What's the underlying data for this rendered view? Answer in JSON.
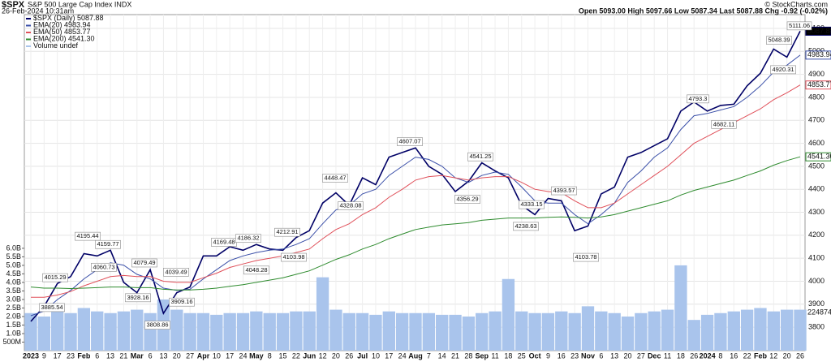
{
  "chart_data": {
    "type": "line",
    "title": "$SPX",
    "subtitle": "S&P 500 Large Cap Index INDX",
    "date": "26-Feb-2024 10:31am",
    "source": "© StockCharts.com",
    "quote": "Open 5093.00  High 5097.66  Low 5087.34  Last 5087.88  Chg -0.92 (-0.02%)",
    "categories": [
      "2023",
      "9",
      "17",
      "23",
      "Feb",
      "6",
      "13",
      "21",
      "Mar",
      "6",
      "13",
      "20",
      "27",
      "Apr",
      "10",
      "17",
      "24",
      "May",
      "8",
      "15",
      "22",
      "Jun",
      "12",
      "20",
      "26",
      "Jul",
      "10",
      "17",
      "24",
      "Aug",
      "7",
      "14",
      "21",
      "28",
      "Sep",
      "11",
      "18",
      "25",
      "Oct",
      "9",
      "16",
      "23",
      "Nov",
      "6",
      "13",
      "20",
      "27",
      "Dec",
      "11",
      "18",
      "26",
      "2024",
      "8",
      "16",
      "22",
      "Feb",
      "12",
      "20",
      "26"
    ],
    "series": [
      {
        "name": "$SPX (Daily)",
        "last_label": "5087.88",
        "color": "#000066",
        "values": [
          3825,
          3890,
          3990,
          4020,
          4120,
          4110,
          4135,
          3995,
          3950,
          4050,
          3860,
          3950,
          3975,
          4110,
          4110,
          4150,
          4135,
          4160,
          4140,
          4135,
          4190,
          4220,
          4340,
          4385,
          4330,
          4450,
          4420,
          4540,
          4560,
          4580,
          4500,
          4465,
          4390,
          4435,
          4515,
          4480,
          4450,
          4330,
          4290,
          4360,
          4350,
          4220,
          4240,
          4380,
          4410,
          4540,
          4560,
          4590,
          4620,
          4740,
          4780,
          4740,
          4765,
          4770,
          4850,
          4905,
          5010,
          4975,
          5087.88
        ]
      },
      {
        "name": "EMA(20)",
        "last_label": "4983.94",
        "color": "#3a4fa8",
        "values": [
          3850,
          3870,
          3920,
          3960,
          4010,
          4050,
          4080,
          4070,
          4030,
          4010,
          3970,
          3960,
          3965,
          4010,
          4050,
          4090,
          4110,
          4125,
          4135,
          4140,
          4160,
          4185,
          4250,
          4310,
          4330,
          4380,
          4400,
          4460,
          4500,
          4540,
          4530,
          4500,
          4450,
          4430,
          4460,
          4475,
          4465,
          4410,
          4350,
          4340,
          4340,
          4290,
          4250,
          4290,
          4340,
          4430,
          4480,
          4540,
          4580,
          4660,
          4720,
          4730,
          4745,
          4760,
          4800,
          4850,
          4910,
          4940,
          4983.94
        ]
      },
      {
        "name": "EMA(50)",
        "last_label": "4853.77",
        "color": "#e0505a",
        "values": [
          3930,
          3930,
          3940,
          3955,
          3980,
          4000,
          4020,
          4025,
          4020,
          4020,
          4000,
          3995,
          3995,
          4015,
          4035,
          4060,
          4075,
          4090,
          4100,
          4110,
          4125,
          4140,
          4185,
          4225,
          4250,
          4290,
          4320,
          4365,
          4400,
          4440,
          4455,
          4460,
          4450,
          4440,
          4450,
          4455,
          4455,
          4430,
          4400,
          4390,
          4385,
          4350,
          4320,
          4320,
          4340,
          4380,
          4420,
          4460,
          4500,
          4550,
          4600,
          4630,
          4660,
          4690,
          4720,
          4750,
          4790,
          4820,
          4853.77
        ]
      },
      {
        "name": "EMA(200)",
        "last_label": "4541.30",
        "color": "#2e8b2e",
        "values": [
          3975,
          3970,
          3970,
          3968,
          3970,
          3972,
          3975,
          3975,
          3972,
          3972,
          3965,
          3962,
          3962,
          3965,
          3970,
          3978,
          3985,
          3995,
          4005,
          4015,
          4030,
          4045,
          4070,
          4095,
          4115,
          4140,
          4160,
          4185,
          4205,
          4225,
          4235,
          4245,
          4250,
          4255,
          4265,
          4270,
          4275,
          4275,
          4275,
          4278,
          4280,
          4278,
          4275,
          4280,
          4290,
          4305,
          4320,
          4335,
          4350,
          4375,
          4395,
          4410,
          4425,
          4440,
          4460,
          4480,
          4505,
          4525,
          4541.3
        ]
      }
    ],
    "volume": {
      "name": "Volume undef",
      "last_label": "224874",
      "color": "#a9c4ec",
      "values": [
        2.2,
        2.0,
        2.3,
        2.2,
        2.5,
        2.3,
        2.2,
        2.3,
        2.4,
        2.2,
        3.0,
        2.4,
        2.2,
        2.2,
        2.1,
        2.2,
        2.2,
        2.3,
        2.2,
        2.2,
        2.3,
        2.3,
        4.3,
        2.4,
        2.2,
        2.2,
        2.1,
        2.3,
        2.2,
        2.2,
        2.2,
        2.1,
        2.1,
        2.0,
        2.2,
        2.3,
        4.2,
        2.3,
        2.2,
        2.2,
        2.3,
        2.2,
        2.6,
        2.3,
        2.2,
        2.0,
        2.2,
        2.3,
        2.4,
        5.0,
        1.8,
        2.1,
        2.2,
        2.3,
        2.4,
        2.5,
        2.3,
        2.4,
        2.4
      ],
      "ylim": [
        0,
        19.7
      ],
      "yticks": [
        {
          "value": 0.5,
          "label": "500M"
        },
        {
          "value": 1,
          "label": "1.0B"
        },
        {
          "value": 1.5,
          "label": "1.5B"
        },
        {
          "value": 2,
          "label": "2.0B"
        },
        {
          "value": 2.5,
          "label": "2.5B"
        },
        {
          "value": 3,
          "label": "3.0B"
        },
        {
          "value": 3.5,
          "label": "3.5B"
        },
        {
          "value": 4,
          "label": "4.0B"
        },
        {
          "value": 4.5,
          "label": "4.5B"
        },
        {
          "value": 5,
          "label": "5.0B"
        },
        {
          "value": 5.5,
          "label": "5.5B"
        },
        {
          "value": 6,
          "label": "6.0B"
        }
      ]
    },
    "ylim": [
      3698,
      5160
    ],
    "yticks": [
      3800,
      3900,
      4000,
      4100,
      4200,
      4300,
      4400,
      4500,
      4600,
      4700,
      4800,
      4900,
      5000,
      5100
    ],
    "grid": true,
    "annotations": [
      4195.44,
      4015.29,
      3885.54,
      4159.77,
      4060.73,
      4079.49,
      3928.16,
      3808.86,
      4039.49,
      3909.16,
      4169.48,
      4186.32,
      4212.91,
      4048.28,
      4103.98,
      4448.47,
      4328.08,
      4607.07,
      4541.25,
      4356.29,
      4333.15,
      4393.57,
      4238.63,
      4103.78,
      4793.3,
      4682.11,
      5048.39,
      4920.31,
      5111.06
    ]
  }
}
